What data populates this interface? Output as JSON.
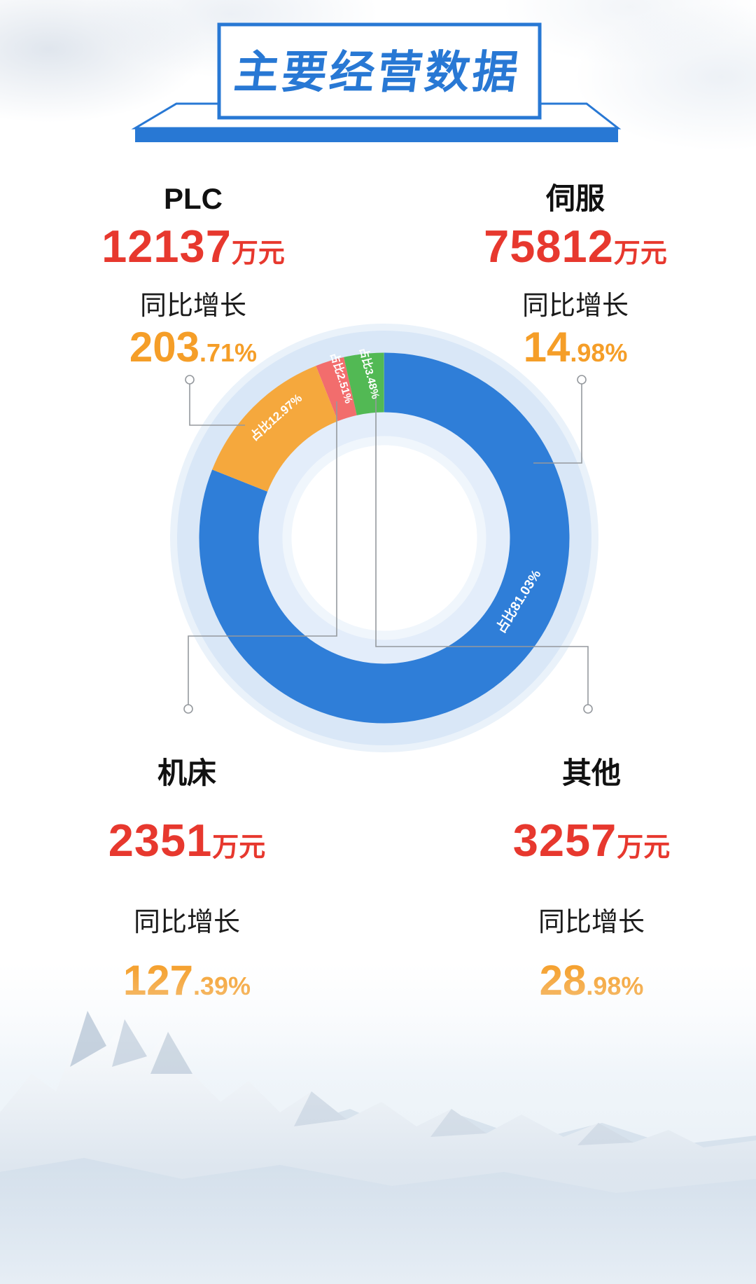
{
  "banner": {
    "title": "主要经营数据"
  },
  "stats": [
    {
      "id": "plc",
      "name": "PLC",
      "value": "12137",
      "unit": "万元",
      "growth_label": "同比增长",
      "growth_int": "203",
      "growth_frac": ".71%"
    },
    {
      "id": "servo",
      "name": "伺服",
      "value": "75812",
      "unit": "万元",
      "growth_label": "同比增长",
      "growth_int": "14",
      "growth_frac": ".98%"
    },
    {
      "id": "machine",
      "name": "机床",
      "value": "2351",
      "unit": "万元",
      "growth_label": "同比增长",
      "growth_int": "127",
      "growth_frac": ".39%"
    },
    {
      "id": "other",
      "name": "其他",
      "value": "3257",
      "unit": "万元",
      "growth_label": "同比增长",
      "growth_int": "28",
      "growth_frac": ".98%"
    }
  ],
  "colors": {
    "banner_blue": "#2878d4",
    "value_red": "#e7382e",
    "growth_orange": "#f59e28",
    "halo_blue": "#d9e7f7"
  },
  "chart_data": {
    "type": "pie",
    "title": "主要经营数据",
    "unit": "万元",
    "donut": true,
    "inner_radius_ratio": 0.68,
    "start_angle": "top",
    "clockwise": true,
    "legend": "none",
    "series": [
      {
        "id": "servo",
        "name": "伺服",
        "value": 75812,
        "pct": 81.03,
        "label": "占比81.03%",
        "yoy_growth_pct": 14.98,
        "color": "#2f7ed8"
      },
      {
        "id": "plc",
        "name": "PLC",
        "value": 12137,
        "pct": 12.97,
        "label": "占比12.97%",
        "yoy_growth_pct": 203.71,
        "color": "#f5a83d"
      },
      {
        "id": "machine",
        "name": "机床",
        "value": 2351,
        "pct": 2.51,
        "label": "占比2.51%",
        "yoy_growth_pct": 127.39,
        "color": "#f26d6d"
      },
      {
        "id": "other",
        "name": "其他",
        "value": 3257,
        "pct": 3.48,
        "label": "占比3.48%",
        "yoy_growth_pct": 28.98,
        "color": "#52b954"
      }
    ]
  }
}
